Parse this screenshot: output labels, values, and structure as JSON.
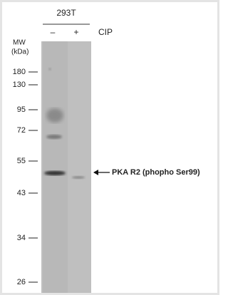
{
  "header": {
    "cell_line": "293T",
    "lanes": [
      "–",
      "+"
    ],
    "treatment": "CIP"
  },
  "mw_label": [
    "MW",
    "(kDa)"
  ],
  "markers": [
    "180",
    "130",
    "95",
    "72",
    "55",
    "43",
    "34",
    "26"
  ],
  "annotation": "PKA R2 (phopho Ser99)"
}
